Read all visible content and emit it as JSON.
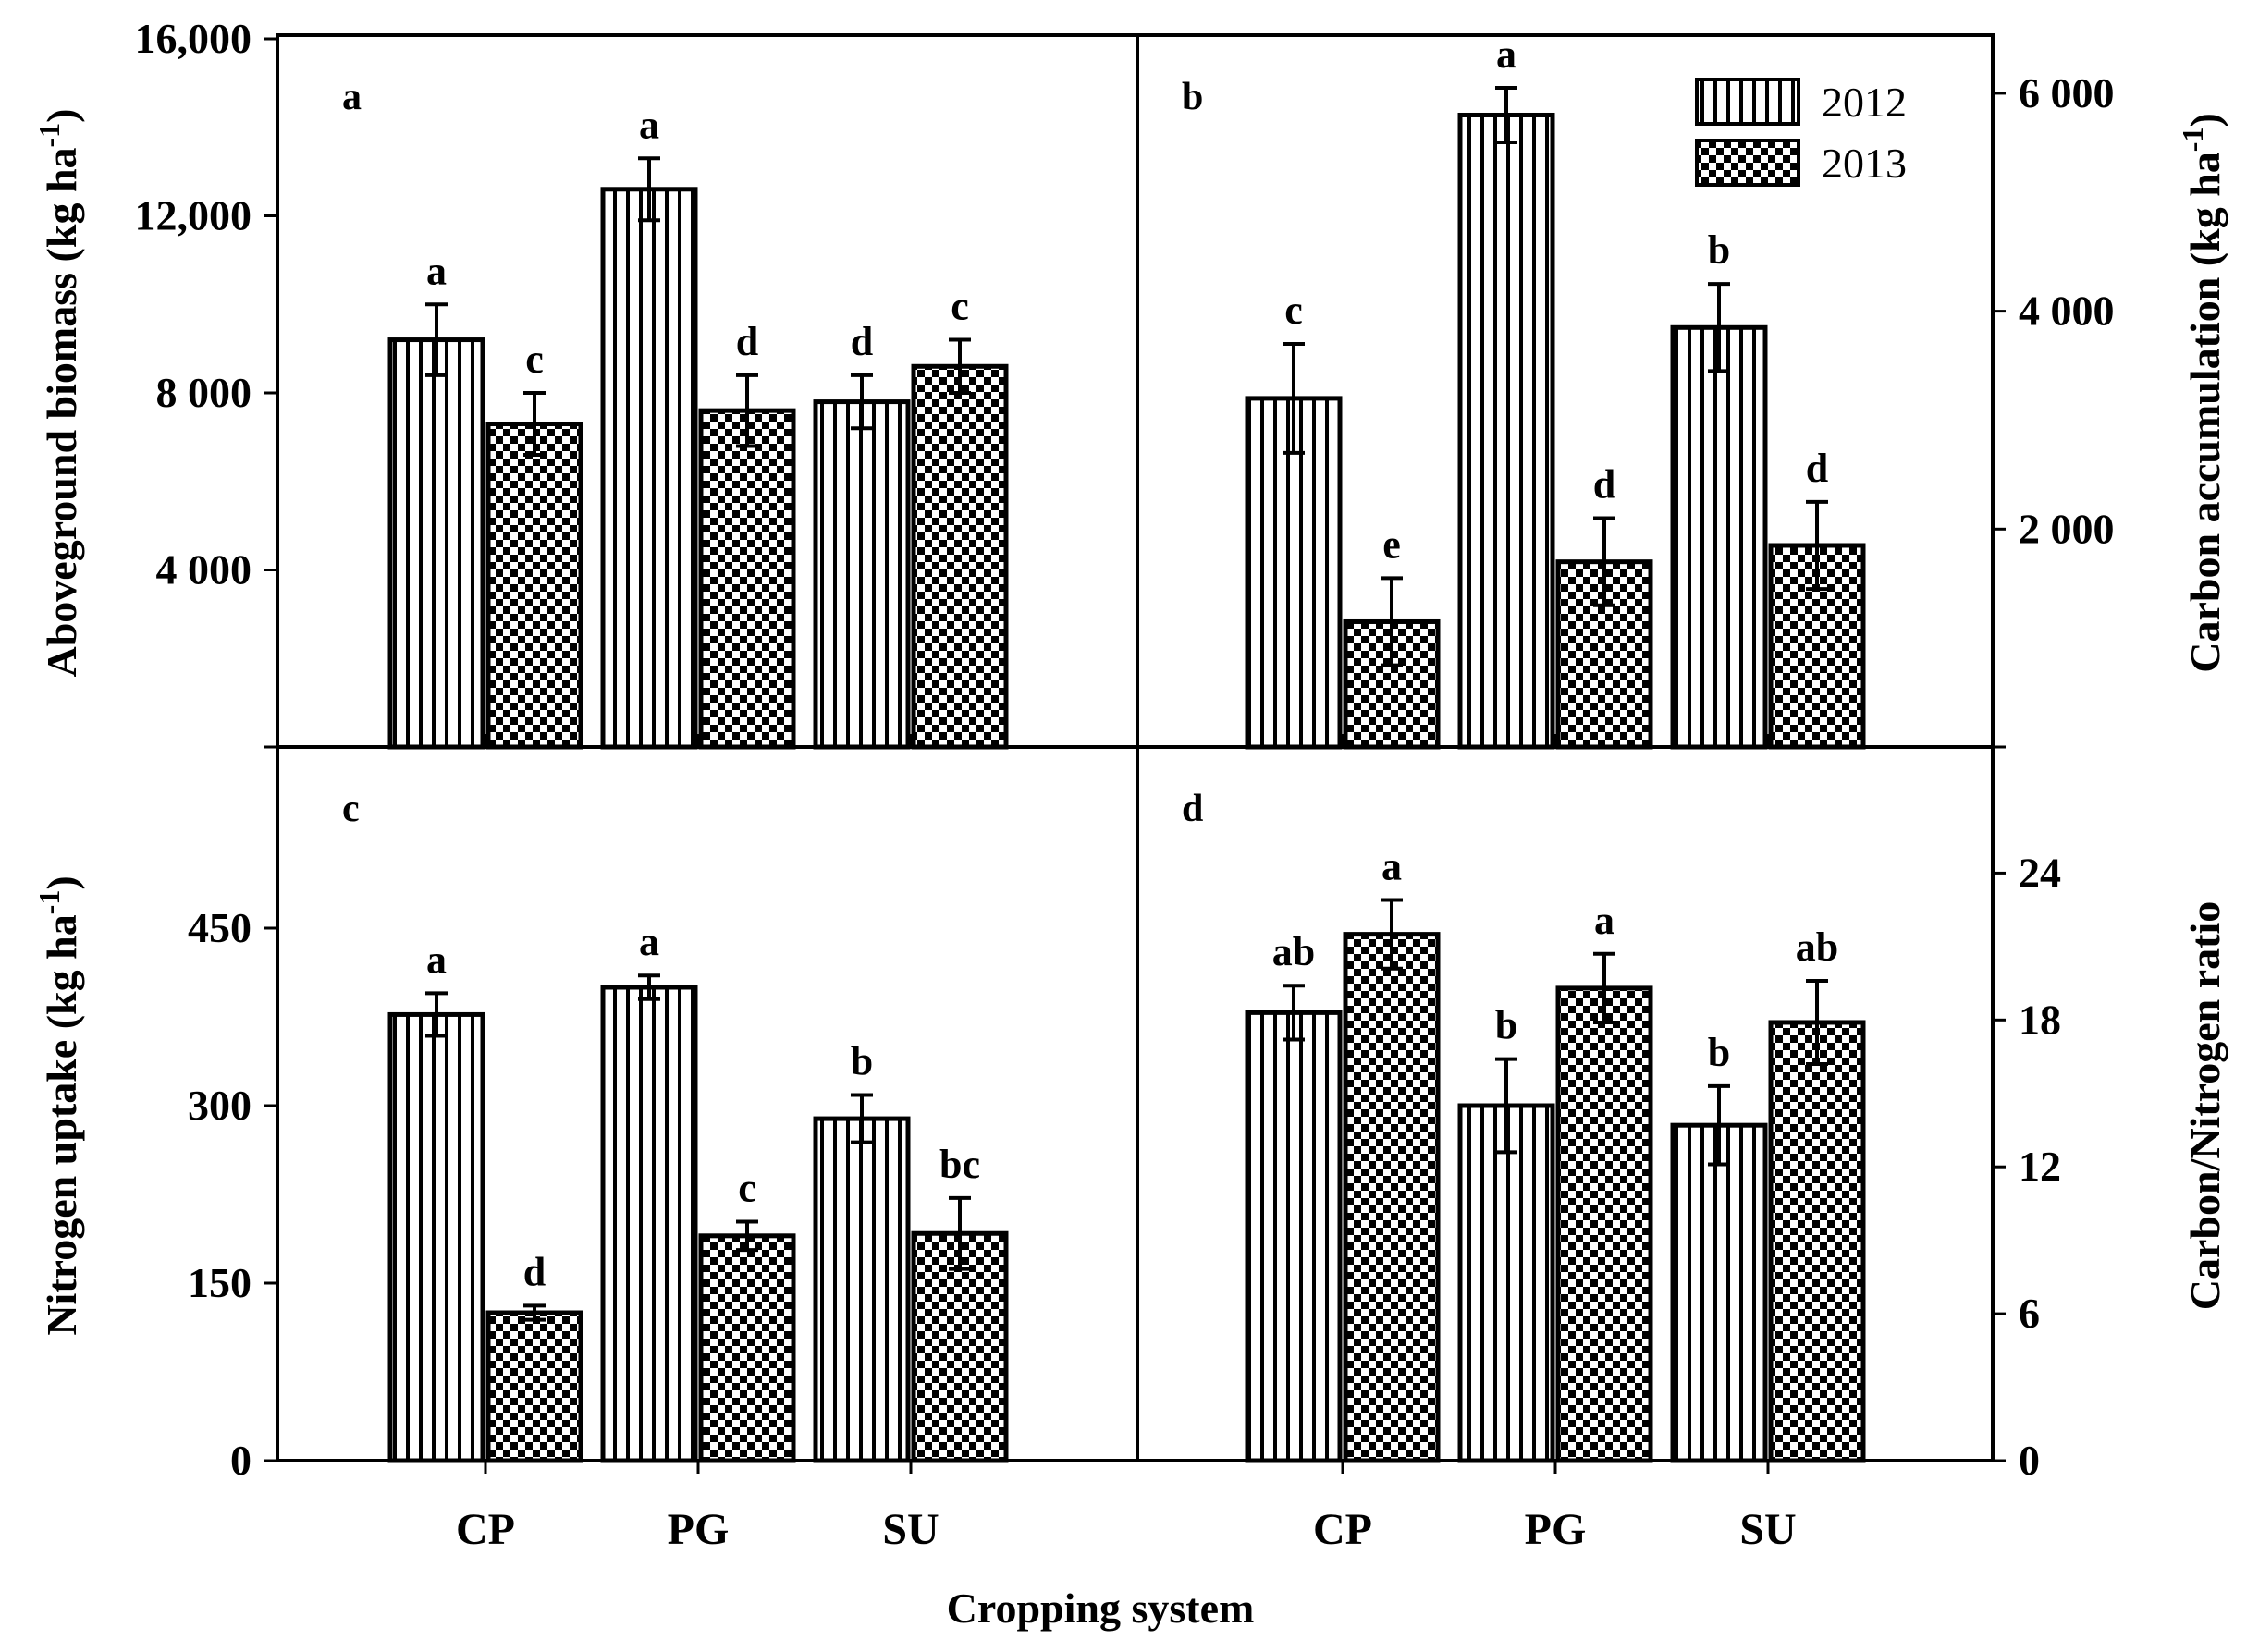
{
  "chart_data": {
    "type": "bar",
    "xlabel": "Cropping system",
    "categories": [
      "CP",
      "PG",
      "SU"
    ],
    "legend": [
      {
        "name": "2012",
        "pattern": "vertical-stripes"
      },
      {
        "name": "2013",
        "pattern": "checkerboard"
      }
    ],
    "legend_position": "top-right of panel b",
    "panels": [
      {
        "id": "a",
        "letter": "a",
        "ylabel": "Aboveground biomass (kg ha",
        "ylabel_sup": "-1",
        "ylabel_suffix": ")",
        "yaxis_side": "left",
        "ylim": [
          0,
          16000
        ],
        "yticks": [
          4000,
          8000,
          12000,
          16000
        ],
        "ytick_labels": [
          "4 000",
          "8 000",
          "12,000",
          "16,000"
        ],
        "series": [
          {
            "name": "2012",
            "values": [
              9200,
              12600,
              7800
            ],
            "errors": [
              800,
              700,
              600
            ],
            "letters": [
              "a",
              "a",
              "d"
            ]
          },
          {
            "name": "2013",
            "values": [
              7300,
              7600,
              8600
            ],
            "errors": [
              700,
              800,
              600
            ],
            "letters": [
              "c",
              "d",
              "c"
            ]
          }
        ]
      },
      {
        "id": "b",
        "letter": "b",
        "ylabel": "Carbon accumulation (kg ha",
        "ylabel_sup": "-1",
        "ylabel_suffix": ")",
        "yaxis_side": "right",
        "ylim": [
          0,
          6500
        ],
        "yticks": [
          2000,
          4000,
          6000
        ],
        "ytick_labels": [
          "2 000",
          "4 000",
          "6 000"
        ],
        "series": [
          {
            "name": "2012",
            "values": [
              3200,
              5800,
              3850
            ],
            "errors": [
              500,
              250,
              400
            ],
            "letters": [
              "c",
              "a",
              "b"
            ]
          },
          {
            "name": "2013",
            "values": [
              1150,
              1700,
              1850
            ],
            "errors": [
              400,
              400,
              400
            ],
            "letters": [
              "e",
              "d",
              "d"
            ]
          }
        ]
      },
      {
        "id": "c",
        "letter": "c",
        "ylabel": "Nitrogen uptake (kg ha",
        "ylabel_sup": "-1",
        "ylabel_suffix": ")",
        "yaxis_side": "left",
        "ylim": [
          0,
          600
        ],
        "yticks": [
          0,
          150,
          300,
          450
        ],
        "ytick_labels": [
          "0",
          "150",
          "300",
          "450"
        ],
        "series": [
          {
            "name": "2012",
            "values": [
              377,
              400,
              289
            ],
            "errors": [
              18,
              10,
              20
            ],
            "letters": [
              "a",
              "a",
              "b"
            ]
          },
          {
            "name": "2013",
            "values": [
              125,
              190,
              192
            ],
            "errors": [
              6,
              12,
              30
            ],
            "letters": [
              "d",
              "c",
              "bc"
            ]
          }
        ]
      },
      {
        "id": "d",
        "letter": "d",
        "ylabel": "Carbon/Nitrogen ratio",
        "ylabel_sup": "",
        "ylabel_suffix": "",
        "yaxis_side": "right",
        "ylim": [
          0,
          29
        ],
        "yticks": [
          0,
          6,
          12,
          18,
          24
        ],
        "ytick_labels": [
          "0",
          "6",
          "12",
          "18",
          "24"
        ],
        "series": [
          {
            "name": "2012",
            "values": [
              18.3,
              14.5,
              13.7
            ],
            "errors": [
              1.1,
              1.9,
              1.6
            ],
            "letters": [
              "ab",
              "b",
              "b"
            ]
          },
          {
            "name": "2013",
            "values": [
              21.5,
              19.3,
              17.9
            ],
            "errors": [
              1.4,
              1.4,
              1.7
            ],
            "letters": [
              "a",
              "a",
              "ab"
            ]
          }
        ]
      }
    ]
  }
}
